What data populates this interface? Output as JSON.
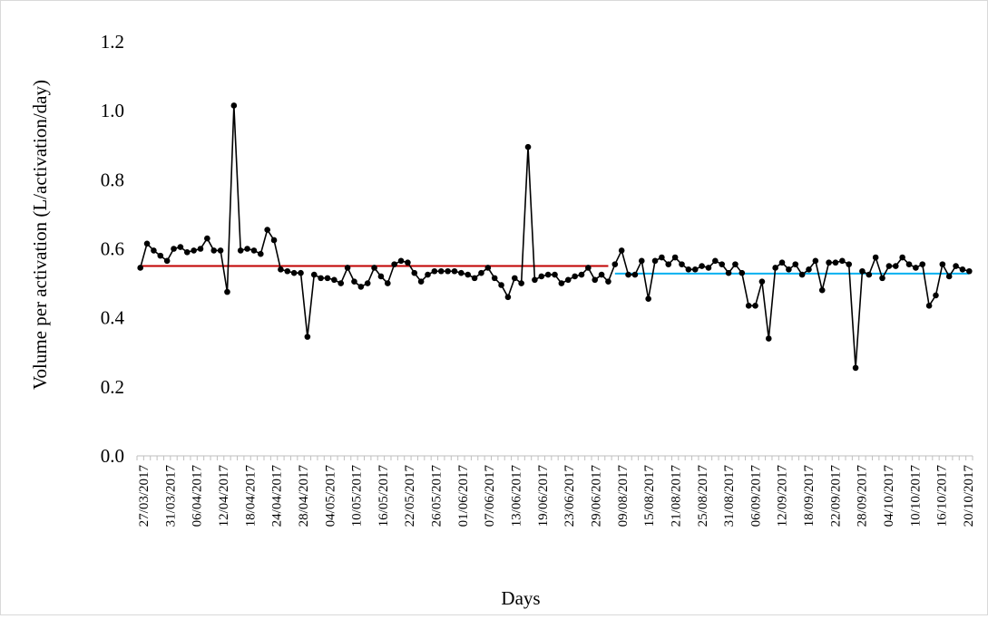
{
  "chart_data": {
    "type": "line",
    "xlabel": "Days",
    "ylabel": "Volume per activation (L/activation/day)",
    "ylim": [
      0,
      1.2
    ],
    "yticks": [
      "0.0",
      "0.2",
      "0.4",
      "0.6",
      "0.8",
      "1.0",
      "1.2"
    ],
    "grid": false,
    "x_tick_labels": [
      "27/03/2017",
      "31/03/2017",
      "06/04/2017",
      "12/04/2017",
      "18/04/2017",
      "24/04/2017",
      "28/04/2017",
      "04/05/2017",
      "10/05/2017",
      "16/05/2017",
      "22/05/2017",
      "26/05/2017",
      "01/06/2017",
      "07/06/2017",
      "13/06/2017",
      "19/06/2017",
      "23/06/2017",
      "29/06/2017",
      "09/08/2017",
      "15/08/2017",
      "21/08/2017",
      "25/08/2017",
      "31/08/2017",
      "06/09/2017",
      "12/09/2017",
      "18/09/2017",
      "22/09/2017",
      "28/09/2017",
      "04/10/2017",
      "10/10/2017",
      "16/10/2017",
      "20/10/2017"
    ],
    "series": [
      {
        "color": "#000000",
        "marker": "circle",
        "values": [
          0.545,
          0.615,
          0.595,
          0.58,
          0.565,
          0.6,
          0.605,
          0.59,
          0.595,
          0.6,
          0.63,
          0.595,
          0.595,
          0.475,
          1.015,
          0.595,
          0.6,
          0.595,
          0.585,
          0.655,
          0.625,
          0.54,
          0.535,
          0.53,
          0.53,
          0.345,
          0.525,
          0.515,
          0.515,
          0.51,
          0.5,
          0.545,
          0.505,
          0.49,
          0.5,
          0.545,
          0.52,
          0.5,
          0.555,
          0.565,
          0.56,
          0.53,
          0.505,
          0.525,
          0.535,
          0.535,
          0.535,
          0.535,
          0.53,
          0.525,
          0.515,
          0.53,
          0.545,
          0.515,
          0.495,
          0.46,
          0.515,
          0.5,
          0.895,
          0.51,
          0.52,
          0.525,
          0.525,
          0.5,
          0.51,
          0.52,
          0.525,
          0.545,
          0.51,
          0.525,
          0.505,
          0.555,
          0.595,
          0.525,
          0.525,
          0.565,
          0.455,
          0.565,
          0.575,
          0.555,
          0.575,
          0.555,
          0.54,
          0.54,
          0.55,
          0.545,
          0.565,
          0.555,
          0.53,
          0.555,
          0.53,
          0.435,
          0.435,
          0.505,
          0.34,
          0.545,
          0.56,
          0.54,
          0.555,
          0.525,
          0.54,
          0.565,
          0.48,
          0.56,
          0.56,
          0.565,
          0.555,
          0.255,
          0.535,
          0.525,
          0.575,
          0.515,
          0.55,
          0.55,
          0.575,
          0.555,
          0.545,
          0.555,
          0.435,
          0.465,
          0.555,
          0.52,
          0.55,
          0.54,
          0.535
        ]
      }
    ],
    "reference_lines": [
      {
        "color": "#c00000",
        "value": 0.55,
        "from_index": 0,
        "to_index": 70
      },
      {
        "color": "#00b0f0",
        "value": 0.528,
        "from_index": 71,
        "to_index": 124
      }
    ]
  }
}
